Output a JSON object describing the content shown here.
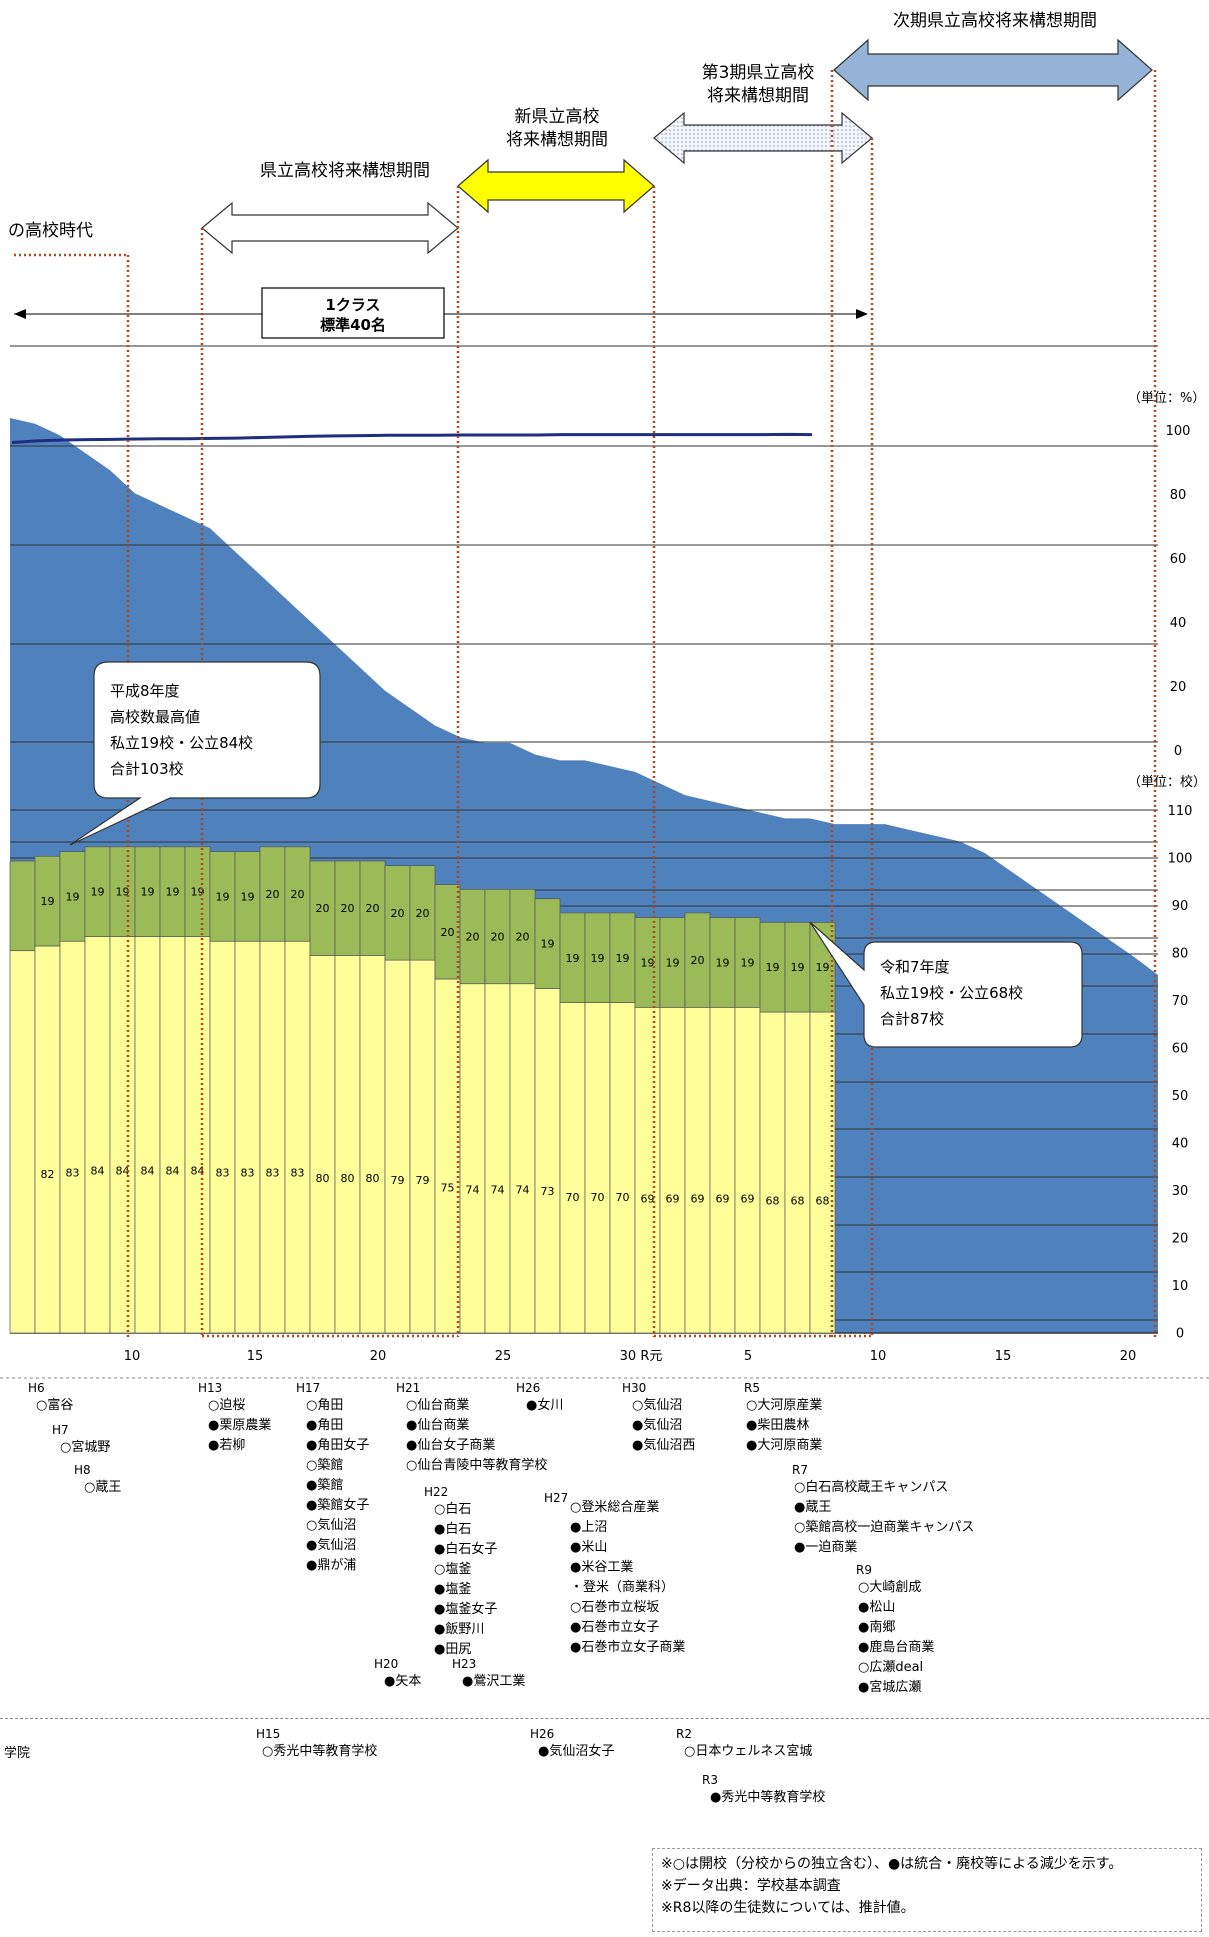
{
  "colors": {
    "area": "#4F81BD",
    "public_bar": "#FFFF99",
    "private_bar": "#9BBB59",
    "line": "#1F2F7F",
    "vline": "#A0522D",
    "yellow_arrow": "#FFFF00",
    "blue_arrow": "#95B3D7"
  },
  "periods": {
    "era_label": "の高校時代",
    "p1": "県立高校将来構想期間",
    "p2_line1": "新県立高校",
    "p2_line2": "将来構想期間",
    "p3_line1": "第3期県立高校",
    "p3_line2": "将来構想期間",
    "p4": "次期県立高校将来構想期間"
  },
  "class_box": {
    "line1": "1クラス",
    "line2": "標準40名"
  },
  "callouts": {
    "peak": [
      "平成8年度",
      "高校数最高値",
      "私立19校・公立84校",
      "合計103校"
    ],
    "latest": [
      "令和7年度",
      "私立19校・公立68校",
      "合計87校"
    ]
  },
  "chart_data": {
    "type": "bar",
    "unit_pct": "（単位：%）",
    "unit_schools": "（単位：校）",
    "pct_ticks": [
      "100",
      "80",
      "60",
      "40",
      "20",
      "0"
    ],
    "school_ticks": [
      "110",
      "100",
      "90",
      "80",
      "70",
      "60",
      "50",
      "40",
      "30",
      "20",
      "10",
      "0"
    ],
    "x_ticks": [
      "10",
      "15",
      "20",
      "25",
      "30 R元",
      "5",
      "10",
      "15",
      "20"
    ],
    "series": [
      {
        "name": "公立",
        "values": [
          81,
          82,
          83,
          84,
          84,
          84,
          84,
          84,
          83,
          83,
          83,
          83,
          80,
          80,
          80,
          79,
          79,
          75,
          74,
          74,
          74,
          73,
          70,
          70,
          70,
          69,
          69,
          69,
          69,
          69,
          68,
          68,
          68
        ]
      },
      {
        "name": "私立",
        "values": [
          19,
          19,
          19,
          19,
          19,
          19,
          19,
          19,
          19,
          19,
          20,
          20,
          20,
          20,
          20,
          20,
          20,
          20,
          20,
          20,
          20,
          19,
          19,
          19,
          19,
          19,
          19,
          20,
          19,
          19,
          19,
          19,
          19
        ]
      }
    ],
    "bar_labels_public": [
      "",
      "82",
      "83",
      "84",
      "84",
      "84",
      "84",
      "84",
      "83",
      "83",
      "83",
      "83",
      "80",
      "80",
      "80",
      "79",
      "79",
      "75",
      "74",
      "74",
      "74",
      "73",
      "70",
      "70",
      "70",
      "69",
      "69",
      "69",
      "69",
      "69",
      "68",
      "68",
      "68"
    ],
    "bar_labels_private": [
      "",
      "19",
      "19",
      "19",
      "19",
      "19",
      "19",
      "19",
      "19",
      "19",
      "20",
      "20",
      "20",
      "20",
      "20",
      "20",
      "20",
      "20",
      "20",
      "20",
      "20",
      "19",
      "19",
      "19",
      "19",
      "19",
      "19",
      "20",
      "19",
      "19",
      "19",
      "19",
      "19"
    ],
    "area_rel": [
      103,
      102,
      100,
      97,
      94,
      90,
      88,
      86,
      84,
      80,
      76,
      72,
      68,
      64,
      60,
      56,
      53,
      50,
      48,
      47,
      47,
      45,
      44,
      44,
      43,
      42,
      40,
      38,
      37,
      36,
      35,
      34,
      34,
      33,
      33,
      33,
      32,
      31,
      30,
      28,
      25,
      22,
      19,
      16,
      13,
      10,
      7
    ],
    "advance_rate": [
      96.0,
      96.5,
      96.8,
      96.9,
      97.0,
      97.1,
      97.2,
      97.2,
      97.3,
      97.4,
      97.6,
      97.8,
      98.0,
      98.1,
      98.2,
      98.3,
      98.3,
      98.3,
      98.4,
      98.4,
      98.4,
      98.4,
      98.5,
      98.5,
      98.5,
      98.5,
      98.5,
      98.5,
      98.5,
      98.5,
      98.5,
      98.6,
      98.5
    ]
  },
  "events_top": [
    {
      "year": "H6",
      "items": [
        "○富谷"
      ]
    },
    {
      "year": "H7",
      "items": [
        "○宮城野"
      ]
    },
    {
      "year": "H8",
      "items": [
        "○蔵王"
      ]
    },
    {
      "year": "H13",
      "items": [
        "○迫桜",
        "●栗原農業",
        "●若柳"
      ]
    },
    {
      "year": "H17",
      "items": [
        "○角田",
        "●角田",
        "●角田女子",
        "○築館",
        "●築館",
        "●築館女子",
        "○気仙沼",
        "●気仙沼",
        "●鼎が浦"
      ]
    },
    {
      "year": "H20",
      "items": [
        "●矢本"
      ]
    },
    {
      "year": "H21",
      "items": [
        "○仙台商業",
        "●仙台商業",
        "●仙台女子商業",
        "○仙台青陵中等教育学校"
      ]
    },
    {
      "year": "H22",
      "items": [
        "○白石",
        "●白石",
        "●白石女子",
        "○塩釜",
        "●塩釜",
        "●塩釜女子",
        "●飯野川",
        "●田尻"
      ]
    },
    {
      "year": "H23",
      "items": [
        "●鶯沢工業"
      ]
    },
    {
      "year": "H26",
      "items": [
        "●女川"
      ]
    },
    {
      "year": "H27",
      "items": [
        "○登米総合産業",
        "●上沼",
        "●米山",
        "●米谷工業",
        "・登米（商業科）",
        "○石巻市立桜坂",
        "●石巻市立女子",
        "●石巻市立女子商業"
      ]
    },
    {
      "year": "H30",
      "items": [
        "○気仙沼",
        "●気仙沼",
        "●気仙沼西"
      ]
    },
    {
      "year": "R5",
      "items": [
        "○大河原産業",
        "●柴田農林",
        "●大河原商業"
      ]
    },
    {
      "year": "R7",
      "items": [
        "○白石高校蔵王キャンパス",
        "●蔵王",
        "○築館高校一迫商業キャンパス",
        "●一迫商業"
      ]
    },
    {
      "year": "R9",
      "items": [
        "○大崎創成",
        "●松山",
        "●南郷",
        "●鹿島台商業",
        "○広瀬deal",
        "●宮城広瀬"
      ]
    }
  ],
  "events_bottom": [
    {
      "year": "",
      "items": [
        "学院"
      ]
    },
    {
      "year": "H15",
      "items": [
        "○秀光中等教育学校"
      ]
    },
    {
      "year": "H26",
      "items": [
        "●気仙沼女子"
      ]
    },
    {
      "year": "R2",
      "items": [
        "○日本ウェルネス宮城"
      ]
    },
    {
      "year": "R3",
      "items": [
        "●秀光中等教育学校"
      ]
    }
  ],
  "notes": [
    "※○は開校（分校からの独立含む）、●は統合・廃校等による減少を示す。",
    "※データ出典：学校基本調査",
    "※R8以降の生徒数については、推計値。"
  ]
}
